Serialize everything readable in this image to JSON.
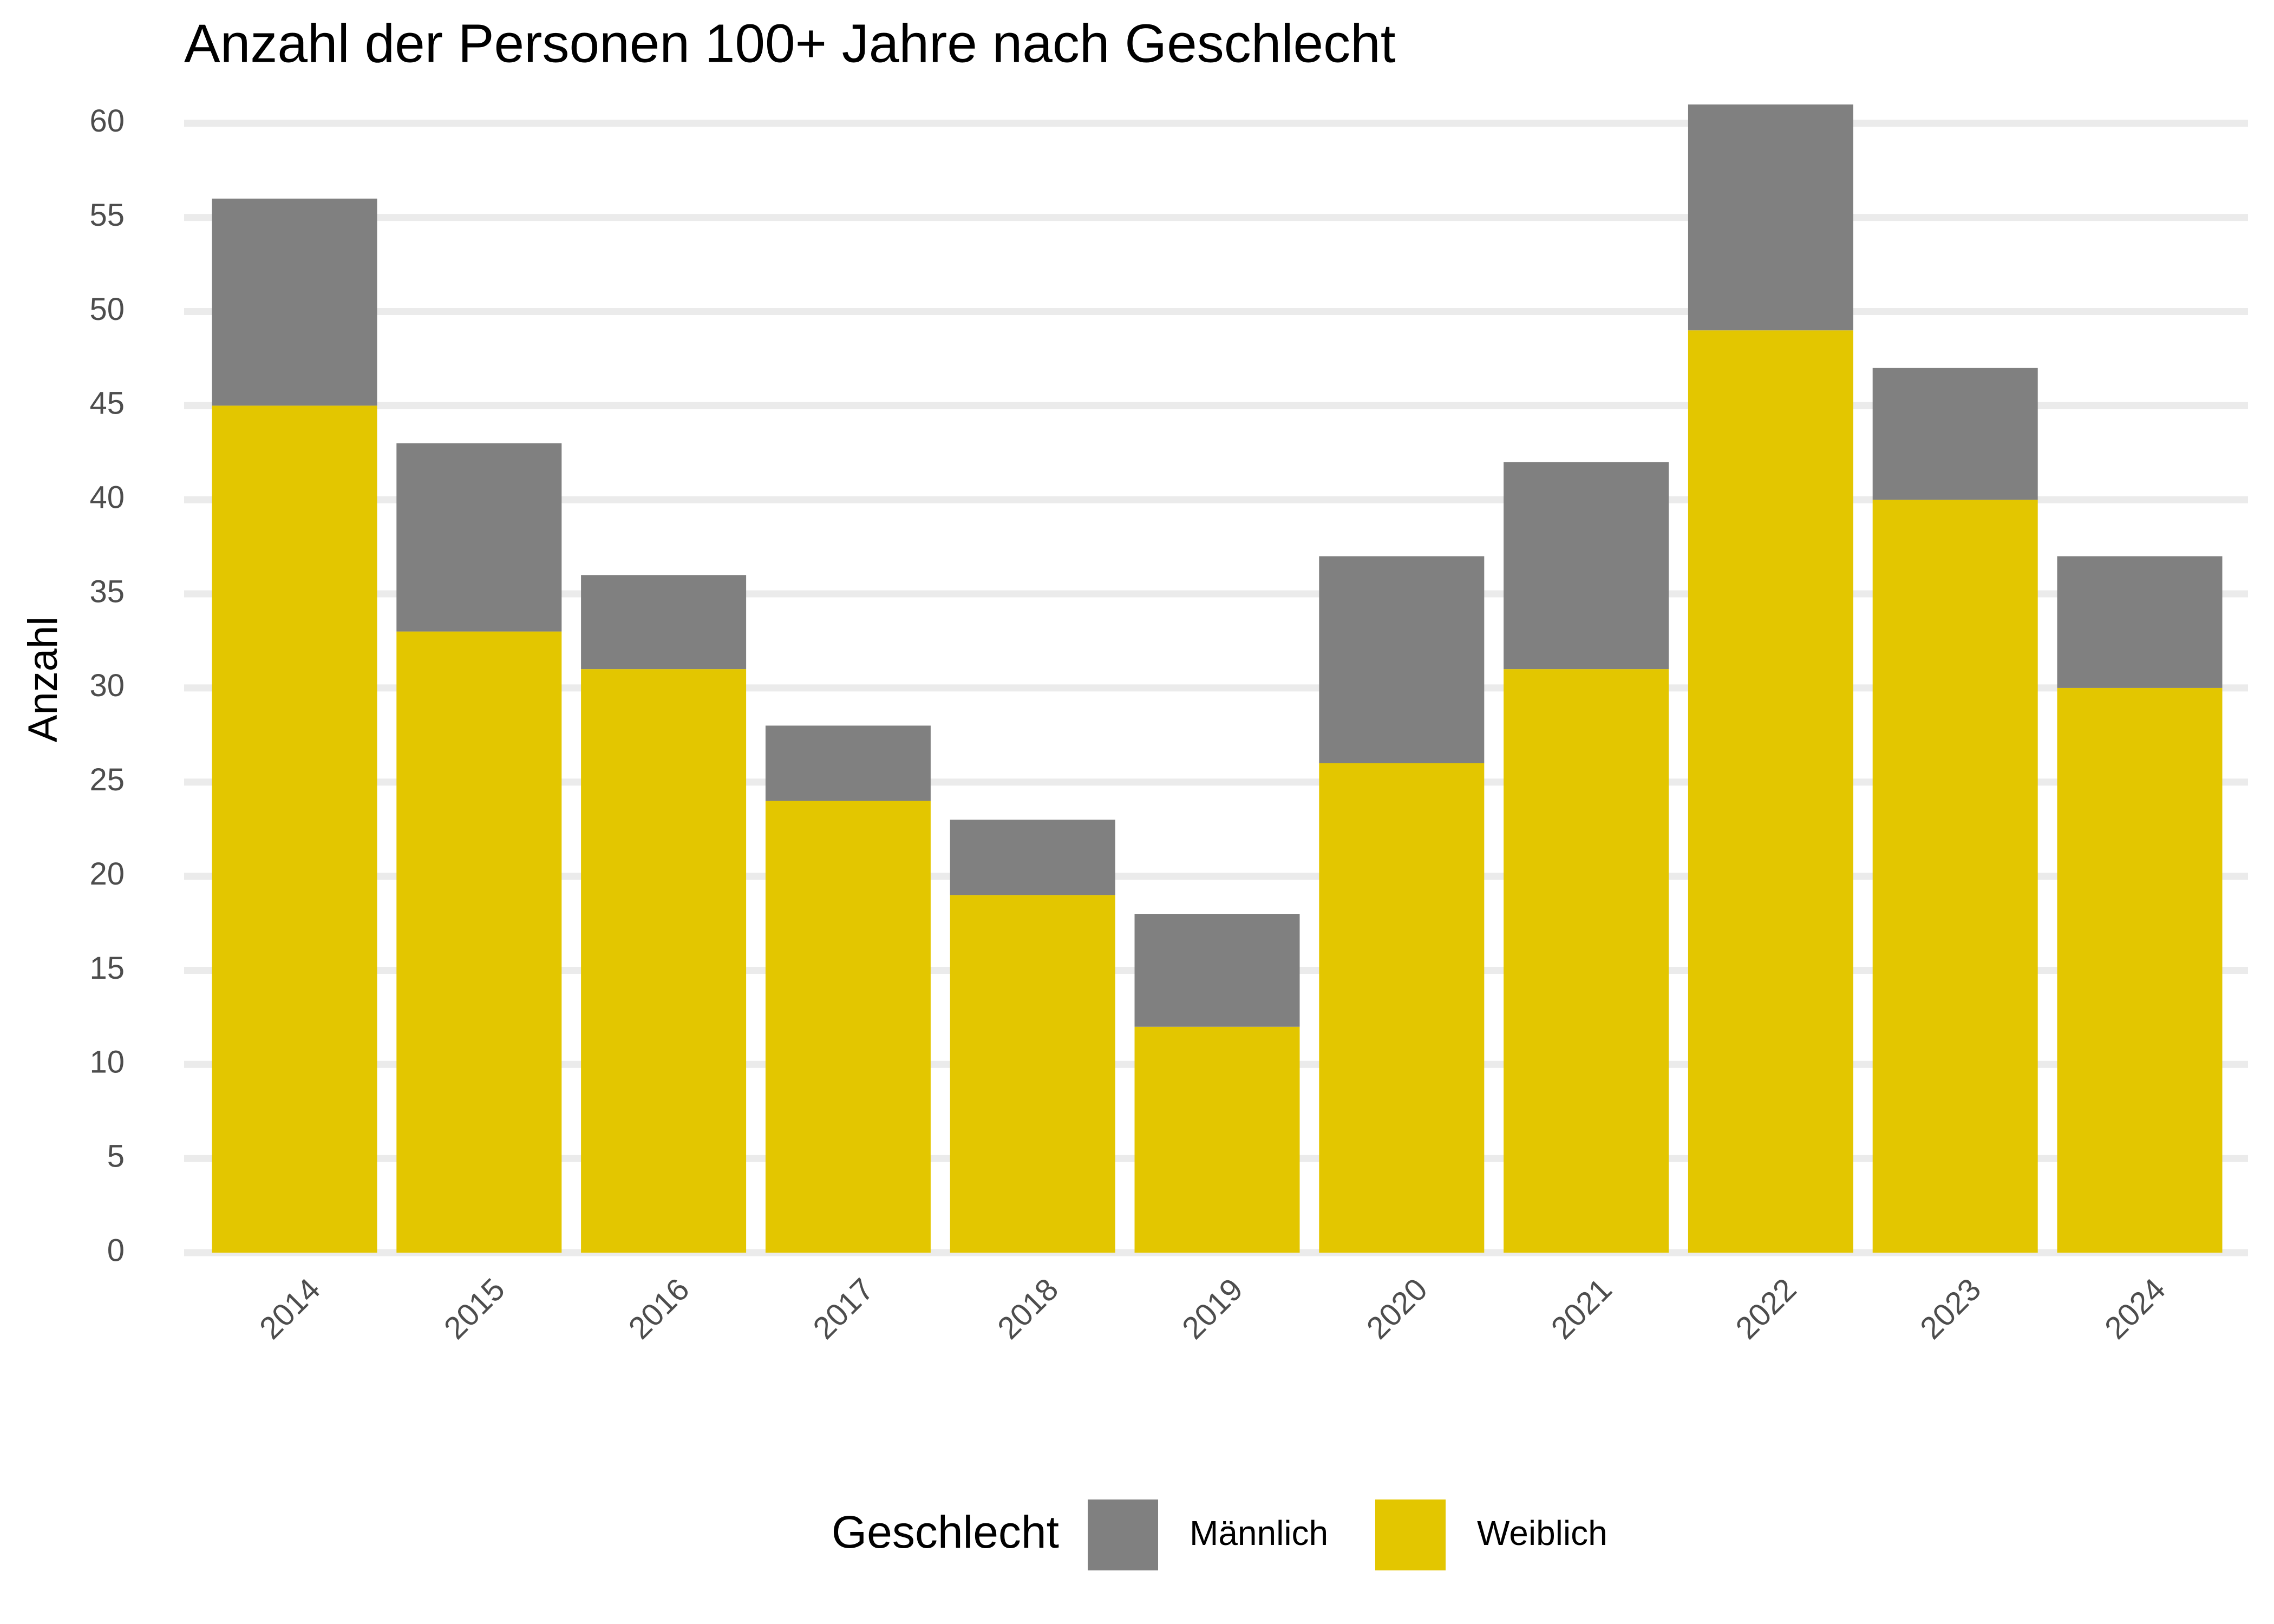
{
  "chart_data": {
    "type": "bar",
    "stacked": true,
    "title": "Anzahl der Personen 100+ Jahre nach Geschlecht",
    "y_label": "Anzahl",
    "legend_title": "Geschlecht",
    "legend_position": "bottom",
    "categories": [
      "2014",
      "2015",
      "2016",
      "2017",
      "2018",
      "2019",
      "2020",
      "2021",
      "2022",
      "2023",
      "2024"
    ],
    "series": [
      {
        "name": "Männlich",
        "color": "#808080",
        "values": [
          11,
          10,
          5,
          4,
          4,
          6,
          11,
          11,
          12,
          7,
          7
        ]
      },
      {
        "name": "Weiblich",
        "color": "#e3c600",
        "values": [
          45,
          33,
          31,
          24,
          19,
          12,
          26,
          31,
          49,
          40,
          30
        ]
      }
    ],
    "ylim": [
      0,
      61
    ],
    "yticks": [
      0,
      5,
      10,
      15,
      20,
      25,
      30,
      35,
      40,
      45,
      50,
      55,
      60
    ],
    "grid": true
  }
}
